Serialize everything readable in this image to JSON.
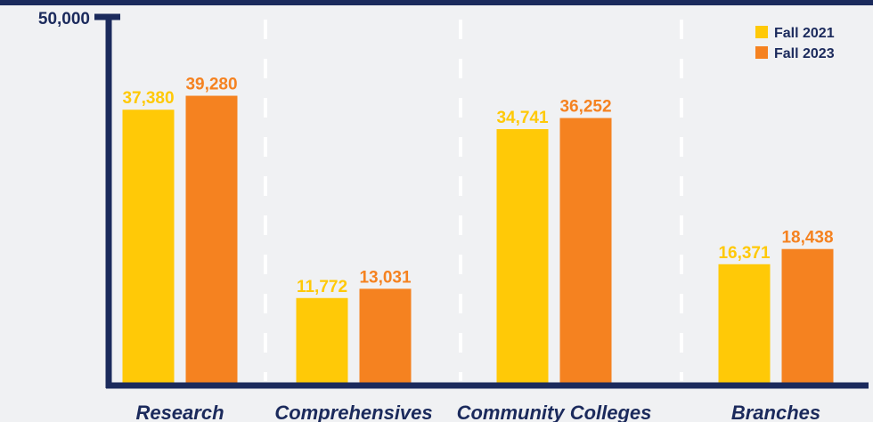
{
  "chart_data": {
    "type": "bar",
    "categories": [
      "Research",
      "Comprehensives",
      "Community Colleges",
      "Branches"
    ],
    "series": [
      {
        "name": "Fall 2021",
        "values": [
          37380,
          11772,
          34741,
          16371
        ]
      },
      {
        "name": "Fall 2023",
        "values": [
          39280,
          13031,
          36252,
          18438
        ]
      }
    ],
    "value_labels": [
      [
        "37,380",
        "11,772",
        "34,741",
        "16,371"
      ],
      [
        "39,280",
        "13,031",
        "36,252",
        "18,438"
      ]
    ],
    "y_max_label": "50,000",
    "ylim": [
      0,
      50000
    ],
    "grid": false,
    "legend_position": "top-right",
    "title": "",
    "xlabel": "",
    "ylabel": ""
  },
  "colors": {
    "series": [
      "#ffc907",
      "#f58220"
    ],
    "axis": "#1b2a5c",
    "background": "#f0f1f3",
    "category_text": "#1b2a5c",
    "divider": "#ffffff"
  }
}
